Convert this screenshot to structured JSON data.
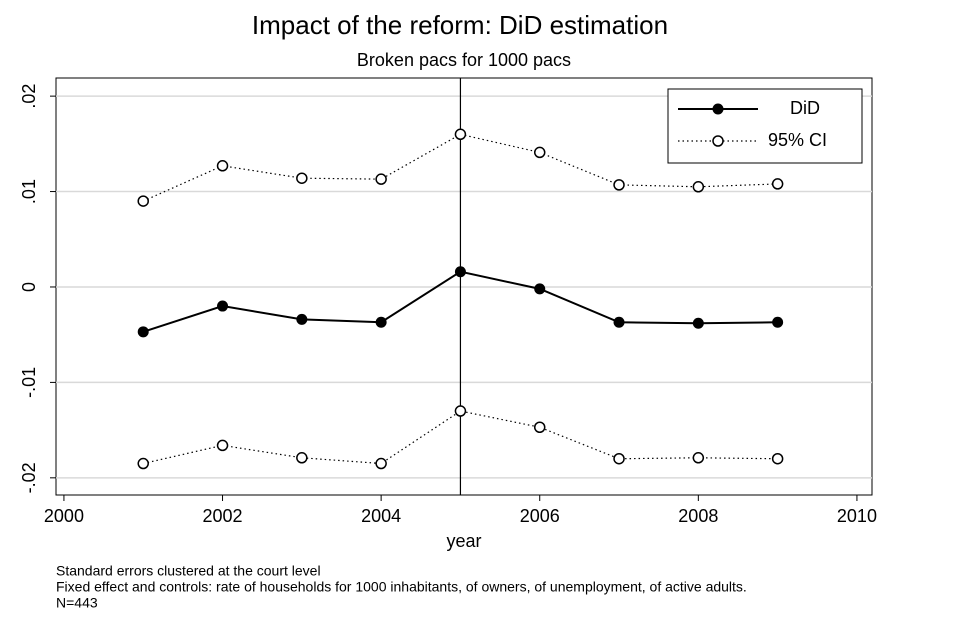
{
  "chart_data": {
    "type": "line",
    "title": "Impact of the reform: DiD estimation",
    "subtitle": "Broken pacs for 1000 pacs",
    "x_label": "year",
    "x": [
      2001,
      2002,
      2003,
      2004,
      2005,
      2006,
      2007,
      2008,
      2009
    ],
    "series": [
      {
        "name": "DiD",
        "color": "#000000",
        "values": [
          -0.0047,
          -0.002,
          -0.0034,
          -0.0037,
          0.0016,
          -0.0002,
          -0.0037,
          -0.0038,
          -0.0037
        ]
      },
      {
        "name": "95% CI",
        "color": "#000000",
        "upper": [
          0.009,
          0.0127,
          0.0114,
          0.0113,
          0.016,
          0.0141,
          0.0107,
          0.0105,
          0.0108
        ],
        "lower": [
          -0.0185,
          -0.0166,
          -0.0179,
          -0.0185,
          -0.013,
          -0.0147,
          -0.018,
          -0.0179,
          -0.018
        ]
      }
    ],
    "vline": 2005,
    "xlim": [
      1999.9,
      2010.19
    ],
    "xticks": [
      2000,
      2002,
      2004,
      2006,
      2008,
      2010
    ],
    "ylim": [
      -0.0218,
      0.0219
    ],
    "yticks": [
      {
        "value": -0.02,
        "label": "-.02"
      },
      {
        "value": -0.01,
        "label": "-.01"
      },
      0,
      {
        "value": 0.01,
        "label": ".01"
      },
      {
        "value": 0.02,
        "label": ".02"
      }
    ],
    "grid": true,
    "legend_position": "top-right",
    "notes": [
      "Standard errors clustered at the court level",
      "Fixed effect and controls: rate of households for 1000 inhabitants, of owners, of unemployment, of active adults.",
      "N=443"
    ]
  }
}
